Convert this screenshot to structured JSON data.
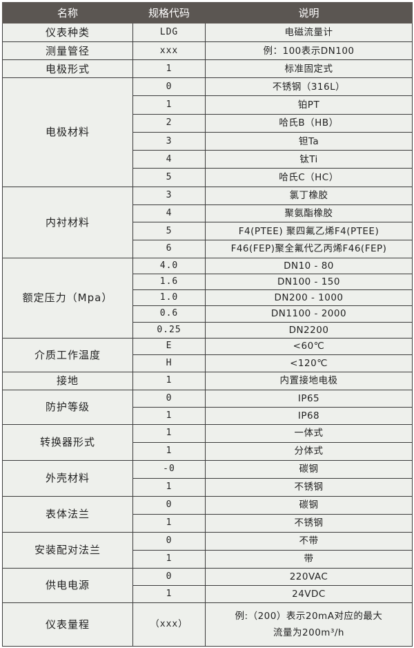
{
  "header": {
    "name": "名称",
    "code": "规格代码",
    "desc": "说明"
  },
  "groups": [
    {
      "name": "仪表种类",
      "rows": [
        {
          "code": "LDG",
          "desc": "电磁流量计"
        }
      ]
    },
    {
      "name": "测量管径",
      "rows": [
        {
          "code": "xxx",
          "desc": "例：100表示DN100"
        }
      ]
    },
    {
      "name": "电极形式",
      "rows": [
        {
          "code": "1",
          "desc": "标准固定式"
        }
      ]
    },
    {
      "name": "电极材料",
      "rows": [
        {
          "code": "0",
          "desc": "不锈钢（316L）"
        },
        {
          "code": "1",
          "desc": "铂PT"
        },
        {
          "code": "2",
          "desc": "哈氏B（HB）"
        },
        {
          "code": "3",
          "desc": "钽Ta"
        },
        {
          "code": "4",
          "desc": "钛Ti"
        },
        {
          "code": "5",
          "desc": "哈氏C（HC）"
        }
      ]
    },
    {
      "name": "内衬材料",
      "rows": [
        {
          "code": "3",
          "desc": "氯丁橡胶"
        },
        {
          "code": "4",
          "desc": "聚氨酯橡胶"
        },
        {
          "code": "5",
          "desc": "F4(PTEE) 聚四氟乙烯F4(PTEE)"
        },
        {
          "code": "6",
          "desc": "F46(FEP)聚全氟代乙丙烯F46(FEP)"
        }
      ]
    },
    {
      "name": "额定压力（Mpa）",
      "rows": [
        {
          "code": "4.0",
          "desc": "DN10 - 80"
        },
        {
          "code": "1.6",
          "desc": "DN100 - 150"
        },
        {
          "code": "1.0",
          "desc": "DN200 - 1000"
        },
        {
          "code": "0.6",
          "desc": "DN1100 - 2000"
        },
        {
          "code": "0.25",
          "desc": "DN2200"
        }
      ]
    },
    {
      "name": "介质工作温度",
      "rows": [
        {
          "code": "E",
          "desc": "<60℃"
        },
        {
          "code": "H",
          "desc": "<120℃"
        }
      ]
    },
    {
      "name": "接地",
      "rows": [
        {
          "code": "1",
          "desc": "内置接地电极"
        }
      ]
    },
    {
      "name": "防护等级",
      "rows": [
        {
          "code": "0",
          "desc": "IP65"
        },
        {
          "code": "1",
          "desc": "IP68"
        }
      ]
    },
    {
      "name": "转换器形式",
      "rows": [
        {
          "code": "1",
          "desc": "一体式"
        },
        {
          "code": "1",
          "desc": "分体式"
        }
      ]
    },
    {
      "name": "外壳材料",
      "rows": [
        {
          "code": "-0",
          "desc": "碳钢"
        },
        {
          "code": "1",
          "desc": "不锈钢"
        }
      ]
    },
    {
      "name": "表体法兰",
      "rows": [
        {
          "code": "0",
          "desc": "碳钢"
        },
        {
          "code": "1",
          "desc": "不锈钢"
        }
      ]
    },
    {
      "name": "安装配对法兰",
      "rows": [
        {
          "code": "0",
          "desc": "不带"
        },
        {
          "code": "1",
          "desc": "带"
        }
      ]
    },
    {
      "name": "供电电源",
      "rows": [
        {
          "code": "0",
          "desc": "220VAC"
        },
        {
          "code": "1",
          "desc": "24VDC"
        }
      ]
    },
    {
      "name": "仪表量程",
      "rows": [
        {
          "code": "（xxx）",
          "desc": "例:（200）表示20mA对应的最大 流量为200m³/h"
        }
      ]
    }
  ],
  "colors": {
    "header_bg": "#5b5652",
    "row_bg": "#eef0ec",
    "border": "#3a3a3a"
  }
}
